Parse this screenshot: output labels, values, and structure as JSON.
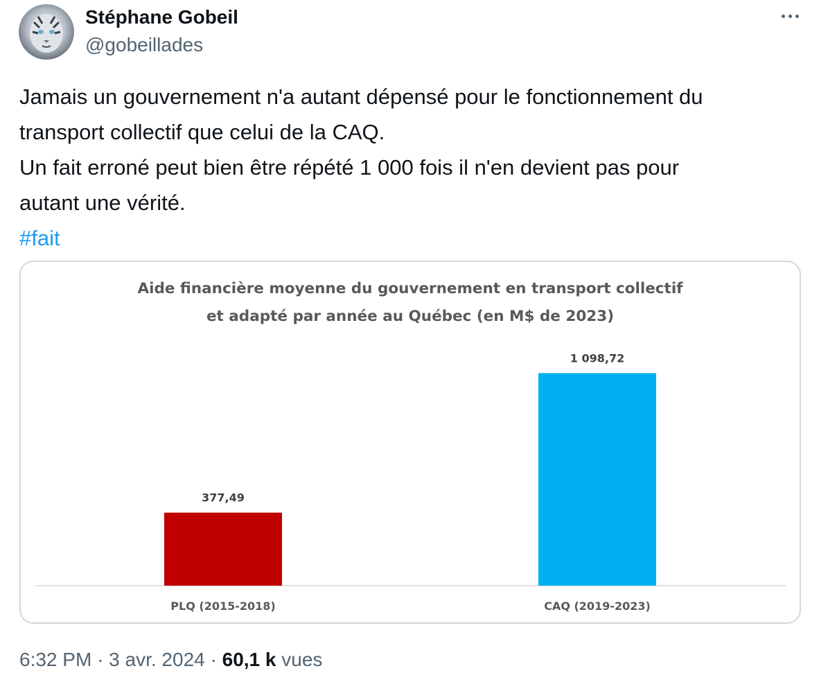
{
  "author": {
    "name": "Stéphane Gobeil",
    "handle": "@gobeillades",
    "avatar_icon": "tiger-avatar"
  },
  "more_icon": "more-horizontal-icon",
  "tweet": {
    "lines": [
      "Jamais un gouvernement n'a autant dépensé pour le fonctionnement du",
      "transport collectif que celui de la CAQ.",
      "Un fait erroné peut bien être répété 1 000 fois il n'en devient pas pour",
      "autant une vérité."
    ],
    "hashtag": "#fait"
  },
  "chart_data": {
    "type": "bar",
    "title": [
      "Aide financière moyenne du gouvernement en transport collectif",
      "et adapté par année au Québec (en M$ de 2023)"
    ],
    "categories": [
      "PLQ (2015-2018)",
      "CAQ (2019-2023)"
    ],
    "values": [
      377.49,
      1098.72
    ],
    "value_labels": [
      "377,49",
      "1 098,72"
    ],
    "colors": [
      "#c00000",
      "#00b0f0"
    ],
    "xlabel": "",
    "ylabel": "",
    "ylim": [
      0,
      1100
    ],
    "grid": false,
    "legend": false
  },
  "footer": {
    "time": "6:32 PM",
    "separator": "·",
    "date": "3 avr. 2024",
    "views_count": "60,1 k",
    "views_label": "vues"
  },
  "colors": {
    "text": "#0f1419",
    "secondary": "#536471",
    "link": "#1d9bf0",
    "border": "#cfd9de"
  }
}
